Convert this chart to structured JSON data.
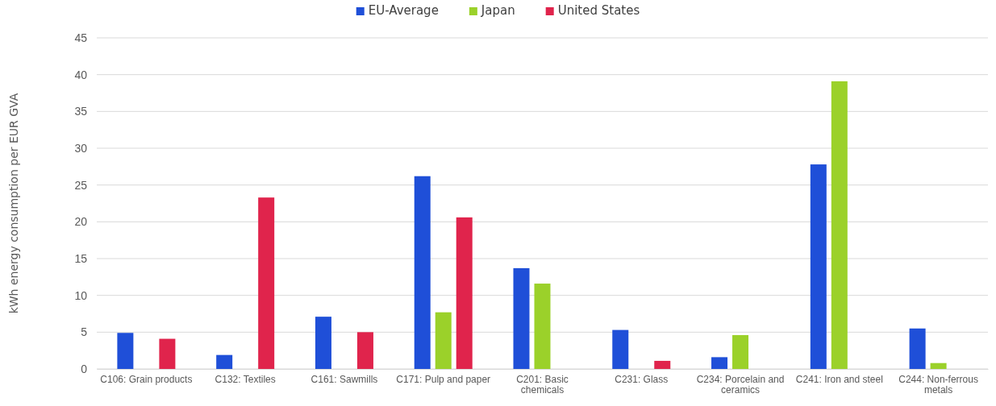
{
  "chart_data": {
    "type": "bar",
    "ylabel": "kWh energy consumption per EUR GVA",
    "categories": [
      "C106: Grain products",
      "C132: Textiles",
      "C161: Sawmills",
      "C171: Pulp and paper",
      "C201: Basic chemicals",
      "C231: Glass",
      "C234: Porcelain and ceramics",
      "C241: Iron and steel",
      "C244: Non-ferrous metals"
    ],
    "series": [
      {
        "name": "EU-Average",
        "color": "#1f4fd8",
        "values": [
          4.9,
          1.9,
          7.1,
          26.2,
          13.7,
          5.3,
          1.6,
          27.8,
          5.5
        ]
      },
      {
        "name": "Japan",
        "color": "#9bd12a",
        "values": [
          null,
          null,
          null,
          7.7,
          11.6,
          null,
          4.6,
          39.1,
          0.8
        ]
      },
      {
        "name": "United States",
        "color": "#e0244c",
        "values": [
          4.1,
          23.3,
          5.0,
          20.6,
          null,
          1.1,
          null,
          null,
          null
        ]
      }
    ],
    "ylim": [
      0,
      45
    ],
    "yticks": [
      0,
      5,
      10,
      15,
      20,
      25,
      30,
      35,
      40,
      45
    ],
    "grid": "y",
    "legend": "top"
  }
}
